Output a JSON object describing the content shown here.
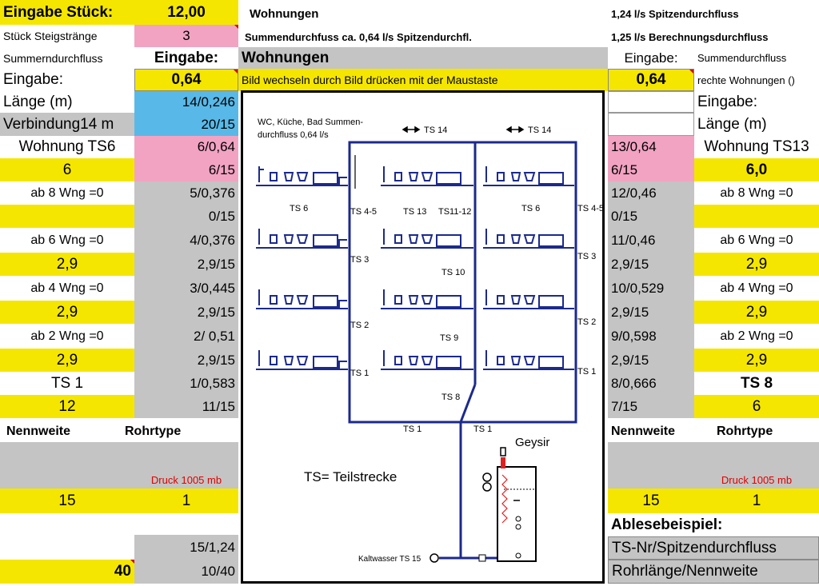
{
  "left": {
    "eingabe_stueck_label": "Eingabe Stück:",
    "eingabe_stueck_value": "12,00",
    "stueck_steig_label": "Stück Steigstränge",
    "stueck_steig_value": "3",
    "summen_label": "Summerndurchfluss",
    "eingabe_header": "Eingabe:",
    "eingabe_label": "Eingabe:",
    "eingabe_value": "0,64",
    "laenge_label": "Länge (m)",
    "laenge_value": "14/0,246",
    "verbindung_label": "Verbindung14 m",
    "verbindung_value": "20/15",
    "wohnung_label": "Wohnung TS6",
    "wohnung_value": "6/0,64",
    "row6_label": "6",
    "row6_value": "6/15",
    "ab8_label": "ab 8 Wng =0",
    "ab8_value": "5/0,376",
    "ab8b_value": "0/15",
    "ab6_label": "ab 6 Wng =0",
    "ab6_value": "4/0,376",
    "ab6b_label": "2,9",
    "ab6b_value": "2,9/15",
    "ab4_label": "ab 4 Wng =0",
    "ab4_value": "3/0,445",
    "ab4b_label": "2,9",
    "ab4b_value": "2,9/15",
    "ab2_label": "ab 2 Wng =0",
    "ab2_value": "2/ 0,51",
    "ab2b_label": "2,9",
    "ab2b_value": "2,9/15",
    "ts1_label": "TS 1",
    "ts1_value": "1/0,583",
    "n12_label": "12",
    "n12_value": "11/15",
    "nennweite": "Nennweite",
    "rohrtype": "Rohrtype",
    "druck": "Druck 1005 mb",
    "nenn_value": "15",
    "rohr_value": "1",
    "bottom1_value": "15/1,24",
    "bottom2_label": "40",
    "bottom2_value": "10/40"
  },
  "middle": {
    "title_top": "Wohnungen",
    "summen_text": "Summendurchfuss ca.  0,64 l/s Spitzendurchfl.",
    "header": "Wohnungen",
    "instruction": "Bild wechseln durch Bild drücken mit der Maustaste"
  },
  "right": {
    "spitzen": "1,24 l/s Spitzendurchfluss",
    "berechnung": "1,25 l/s Berechnungsdurchfluss",
    "eingabe_header": "Eingabe:",
    "summen_label": "Summendurchfluss",
    "eingabe_value": "0,64",
    "rechte_label": "rechte Wohnungen ()",
    "eingabe_label": "Eingabe:",
    "laenge_label": "Länge (m)",
    "wohnung_value": "13/0,64",
    "wohnung_label": "Wohnung TS13",
    "row6_value": "6/15",
    "row6_label": "6,0",
    "ab8_value": "12/0,46",
    "ab8_label": "ab 8 Wng =0",
    "ab8b_value": "0/15",
    "ab6_value": "11/0,46",
    "ab6_label": "ab 6 Wng =0",
    "ab6b_value": "2,9/15",
    "ab6b_label": "2,9",
    "ab4_value": "10/0,529",
    "ab4_label": "ab 4 Wng =0",
    "ab4b_value": "2,9/15",
    "ab4b_label": "2,9",
    "ab2_value": "9/0,598",
    "ab2_label": "ab 2 Wng =0",
    "ab2b_value": "2,9/15",
    "ab2b_label": "2,9",
    "ts8_value": "8/0,666",
    "ts8_label": "TS 8",
    "n7_value": "7/15",
    "n7_label": "6",
    "nennweite": "Nennweite",
    "rohrtype": "Rohrtype",
    "druck": "Druck 1005 mb",
    "nenn_value": "15",
    "rohr_value": "1",
    "ablese": "Ablesebeispiel:",
    "ts_nr": "TS-Nr/Spitzendurchfluss",
    "rohrlaenge": "Rohrlänge/Nennweite"
  },
  "diagram": {
    "note_line1": "WC, Küche, Bad Summen-",
    "note_line2": "durchfluss 0,64 l/s",
    "ts14_a": "TS 14",
    "ts14_b": "TS 14",
    "ts6_left": "TS 6",
    "ts45_left": "TS 4-5",
    "ts13": "TS 13",
    "ts1112": "TS11-12",
    "ts6_right": "TS 6",
    "ts45_right": "TS 4-5",
    "ts3_left": "TS 3",
    "ts10": "TS 10",
    "ts3_right": "TS 3",
    "ts2_left": "TS 2",
    "ts9": "TS 9",
    "ts2_right": "TS 2",
    "ts1_left": "TS 1",
    "ts8": "TS 8",
    "ts1_right": "TS 1",
    "ts1_bottom_a": "TS 1",
    "ts1_bottom_b": "TS 1",
    "legend": "TS= Teilstrecke",
    "geysir": "Geysir",
    "kaltwasser": "Kaltwasser TS 15"
  },
  "colors": {
    "yellow": "#f5e600",
    "gray": "#c4c4c4",
    "pink": "#f2a3c2",
    "blue": "#58b9e8",
    "pipe": "#1c2a8c",
    "red_text": "#e00000"
  }
}
